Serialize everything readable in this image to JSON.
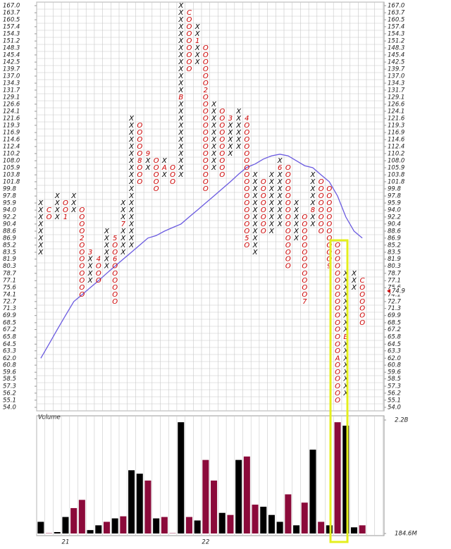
{
  "chart_data": [
    {
      "type": "point-and-figure",
      "log": true,
      "ylim": [
        54.0,
        167.0
      ],
      "yticks": [
        {
          "value": 167.0,
          "label": "167.0"
        },
        163.7,
        160.5,
        157.4,
        154.3,
        151.2,
        148.3,
        145.4,
        142.5,
        139.7,
        {
          "value": 137.0,
          "label": "137.0"
        },
        134.3,
        131.7,
        129.1,
        126.6,
        124.1,
        121.6,
        119.3,
        116.9,
        114.6,
        112.4,
        110.2,
        {
          "value": 108.0,
          "label": "108.0"
        },
        105.9,
        103.8,
        101.8,
        99.8,
        97.8,
        95.9,
        {
          "value": 94.0,
          "label": "94.0"
        },
        92.2,
        90.4,
        88.6,
        86.9,
        85.2,
        83.5,
        81.9,
        80.3,
        78.7,
        77.1,
        75.6,
        74.1,
        72.7,
        71.3,
        69.9,
        68.5,
        67.2,
        65.8,
        64.5,
        63.3,
        {
          "value": 62.0,
          "label": "62.0"
        },
        60.8,
        59.6,
        58.5,
        57.3,
        56.2,
        55.1,
        {
          "value": 54.0,
          "label": "54.0"
        }
      ],
      "colors": {
        "X": "#000000",
        "O": "#cc0000",
        "marker": "#cc0000"
      },
      "columns": [
        {
          "type": "X",
          "low": 83.5,
          "high": 95.9
        },
        {
          "type": "O",
          "low": 92.2,
          "high": 94.0,
          "markers": [
            {
              "label": "C",
              "value": 94.0
            }
          ]
        },
        {
          "type": "X",
          "low": 92.2,
          "high": 97.8
        },
        {
          "type": "O",
          "low": 92.2,
          "high": 95.9,
          "markers": [
            {
              "label": "1",
              "value": 92.2
            }
          ]
        },
        {
          "type": "X",
          "low": 94.0,
          "high": 97.8
        },
        {
          "type": "O",
          "low": 74.1,
          "high": 94.0,
          "markers": [
            {
              "label": "2",
              "value": 86.9
            }
          ]
        },
        {
          "type": "X",
          "low": 77.1,
          "high": 83.5,
          "markers": [
            {
              "label": "3",
              "value": 83.5
            }
          ]
        },
        {
          "type": "O",
          "low": 77.1,
          "high": 81.9,
          "markers": [
            {
              "label": "4",
              "value": 81.9
            }
          ]
        },
        {
          "type": "X",
          "low": 80.3,
          "high": 88.6
        },
        {
          "type": "O",
          "low": 72.7,
          "high": 86.9,
          "markers": [
            {
              "label": "5",
              "value": 86.9
            },
            {
              "label": "6",
              "value": 81.9
            }
          ]
        },
        {
          "type": "X",
          "low": 83.5,
          "high": 95.9,
          "markers": [
            {
              "label": "7",
              "value": 90.4
            }
          ]
        },
        {
          "type": "X",
          "low": 85.2,
          "high": 121.6
        },
        {
          "type": "O",
          "low": 101.8,
          "high": 119.3,
          "markers": [
            {
              "label": "8",
              "value": 108.0
            }
          ]
        },
        {
          "type": "X",
          "low": 105.9,
          "high": 110.2,
          "markers": [
            {
              "label": "9",
              "value": 110.2
            }
          ]
        },
        {
          "type": "O",
          "low": 99.8,
          "high": 108.0
        },
        {
          "type": "X",
          "low": 103.8,
          "high": 108.0,
          "markers": [
            {
              "label": "A",
              "value": 105.9
            }
          ]
        },
        {
          "type": "O",
          "low": 101.8,
          "high": 105.9
        },
        {
          "type": "X",
          "low": 103.8,
          "high": 167.0,
          "markers": [
            {
              "label": "B",
              "value": 129.1
            }
          ]
        },
        {
          "type": "O",
          "low": 139.7,
          "high": 163.7,
          "markers": [
            {
              "label": "C",
              "value": 163.7
            }
          ]
        },
        {
          "type": "X",
          "low": 142.5,
          "high": 157.4,
          "markers": [
            {
              "label": "1",
              "value": 151.2
            }
          ]
        },
        {
          "type": "O",
          "low": 99.8,
          "high": 148.3,
          "markers": [
            {
              "label": "2",
              "value": 131.7
            }
          ]
        },
        {
          "type": "X",
          "low": 105.9,
          "high": 126.6
        },
        {
          "type": "O",
          "low": 103.8,
          "high": 124.1
        },
        {
          "type": "X",
          "low": 110.2,
          "high": 121.6,
          "markers": [
            {
              "label": "3",
              "value": 121.6
            }
          ]
        },
        {
          "type": "X",
          "low": 112.4,
          "high": 124.1
        },
        {
          "type": "O",
          "low": 85.2,
          "high": 121.6,
          "markers": [
            {
              "label": "4",
              "value": 121.6
            },
            {
              "label": "5",
              "value": 86.9
            }
          ]
        },
        {
          "type": "X",
          "low": 83.5,
          "high": 103.8
        },
        {
          "type": "O",
          "low": 88.6,
          "high": 101.8
        },
        {
          "type": "X",
          "low": 88.6,
          "high": 103.8
        },
        {
          "type": "X",
          "low": 90.4,
          "high": 108.0,
          "markers": [
            {
              "label": "6",
              "value": 105.9
            }
          ]
        },
        {
          "type": "O",
          "low": 80.3,
          "high": 105.9
        },
        {
          "type": "X",
          "low": 86.9,
          "high": 95.9
        },
        {
          "type": "O",
          "low": 72.7,
          "high": 92.2,
          "markers": [
            {
              "label": "7",
              "value": 72.7
            }
          ]
        },
        {
          "type": "X",
          "low": 90.4,
          "high": 103.8,
          "markers": [
            {
              "label": "8",
              "value": 94.0
            }
          ]
        },
        {
          "type": "O",
          "low": 88.6,
          "high": 101.8
        },
        {
          "type": "O",
          "low": 80.3,
          "high": 99.8,
          "markers": [
            {
              "label": "9",
              "value": 80.3
            }
          ]
        },
        {
          "type": "O",
          "low": 55.1,
          "high": 85.2,
          "markers": [
            {
              "label": "A",
              "value": 62.0
            }
          ]
        },
        {
          "type": "X",
          "low": 56.2,
          "high": 78.7,
          "markers": [
            {
              "label": "B",
              "value": 65.8
            }
          ]
        },
        {
          "type": "X",
          "low": 75.6,
          "high": 78.7
        },
        {
          "type": "O",
          "low": 68.5,
          "high": 77.1,
          "markers": [
            {
              "label": "C",
              "value": 77.1
            }
          ]
        }
      ],
      "moving_average": {
        "color": "#6a5ae0",
        "values": [
          62.0,
          64.5,
          67.2,
          69.9,
          72.7,
          74.1,
          75.6,
          77.1,
          78.7,
          80.3,
          81.9,
          83.5,
          85.2,
          86.9,
          87.5,
          88.6,
          89.5,
          90.4,
          92.2,
          94.0,
          95.9,
          97.8,
          99.8,
          101.8,
          104.0,
          106.0,
          107.0,
          108.5,
          109.5,
          110.0,
          109.5,
          108.0,
          106.5,
          105.9,
          103.8,
          101.8,
          97.8,
          92.2,
          88.6,
          86.9
        ]
      },
      "last_price": 74.9,
      "last_price_color": "#cc0000"
    },
    {
      "type": "bar",
      "title": "Volume",
      "ylim": [
        184.6,
        2200
      ],
      "yticks": [
        {
          "value": 2200,
          "label": "2.2B"
        },
        {
          "value": 184.6,
          "label": "184.6M"
        }
      ],
      "categories": [
        null,
        null,
        null,
        "21",
        null,
        null,
        null,
        null,
        null,
        null,
        null,
        null,
        null,
        null,
        null,
        null,
        null,
        null,
        null,
        null,
        "22",
        null,
        null,
        null,
        null,
        null,
        null,
        null,
        null,
        null,
        null,
        null,
        null,
        null,
        null,
        null,
        null,
        null,
        null,
        null
      ],
      "values": [
        392,
        190,
        210,
        478,
        636,
        782,
        245,
        330,
        392,
        453,
        490,
        1308,
        1247,
        1125,
        453,
        478,
        190,
        2161,
        478,
        416,
        1491,
        1125,
        551,
        514,
        1491,
        1552,
        697,
        660,
        514,
        392,
        880,
        330,
        733,
        1674,
        392,
        330,
        2161,
        2100,
        294,
        330
      ],
      "colors": [
        "#000000",
        "#8b0a3a",
        "#000000",
        "#000000",
        "#8b0a3a",
        "#8b0a3a",
        "#000000",
        "#000000",
        "#8b0a3a",
        "#000000",
        "#8b0a3a",
        "#000000",
        "#000000",
        "#8b0a3a",
        "#000000",
        "#8b0a3a",
        "#8b0a3a",
        "#000000",
        "#8b0a3a",
        "#000000",
        "#8b0a3a",
        "#8b0a3a",
        "#000000",
        "#8b0a3a",
        "#000000",
        "#8b0a3a",
        "#8b0a3a",
        "#000000",
        "#000000",
        "#000000",
        "#8b0a3a",
        "#000000",
        "#8b0a3a",
        "#000000",
        "#8b0a3a",
        "#000000",
        "#8b0a3a",
        "#000000",
        "#000000",
        "#8b0a3a"
      ]
    }
  ]
}
